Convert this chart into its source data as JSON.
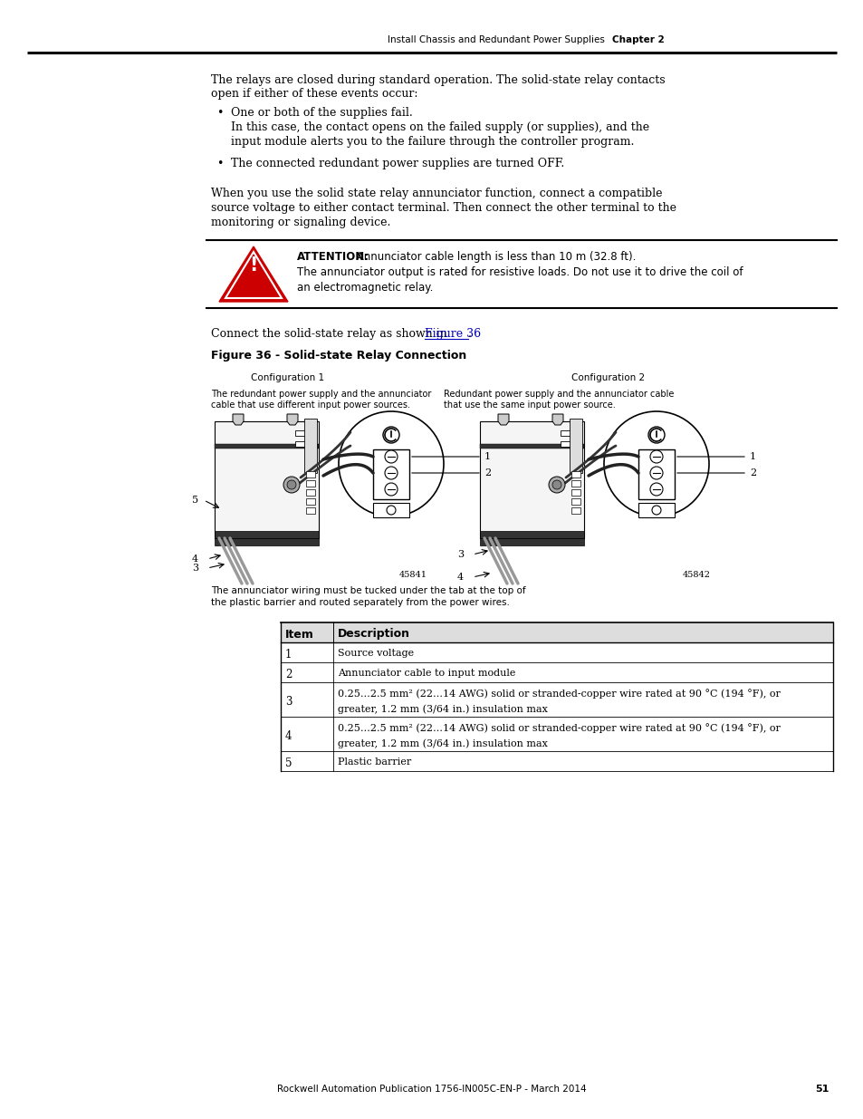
{
  "page_bg": "#ffffff",
  "header_text": "Install Chassis and Redundant Power Supplies",
  "header_chapter": "Chapter 2",
  "footer_text": "Rockwell Automation Publication 1756-IN005C-EN-P - March 2014",
  "footer_page": "51",
  "para1_line1": "The relays are closed during standard operation. The solid-state relay contacts",
  "para1_line2": "open if either of these events occur:",
  "bullet1_title": "One or both of the supplies fail.",
  "bullet1_sub1": "In this case, the contact opens on the failed supply (or supplies), and the",
  "bullet1_sub2": "input module alerts you to the failure through the controller program.",
  "bullet2": "The connected redundant power supplies are turned OFF.",
  "para2_line1": "When you use the solid state relay annunciator function, connect a compatible",
  "para2_line2": "source voltage to either contact terminal. Then connect the other terminal to the",
  "para2_line3": "monitoring or signaling device.",
  "attention_bold": "ATTENTION:",
  "attention_rest_line1": " Annunciator cable length is less than 10 m (32.8 ft).",
  "attention_line2a": "The annunciator output is rated for resistive loads. Do not use it to drive the coil of",
  "attention_line2b": "an electromagnetic relay.",
  "connect_pre": "Connect the solid-state relay as shown in ",
  "connect_link": "Figure 36",
  "connect_post": ".",
  "figure_caption": "Figure 36 - Solid-state Relay Connection",
  "config1_label": "Configuration 1",
  "config1_desc1": "The redundant power supply and the annunciator",
  "config1_desc2": "cable that use different input power sources.",
  "config2_label": "Configuration 2",
  "config2_desc1": "Redundant power supply and the annunciator cable",
  "config2_desc2": "that use the same input power source.",
  "ref1": "45841",
  "ref2": "45842",
  "note_line1": "The annunciator wiring must be tucked under the tab at the top of",
  "note_line2": "the plastic barrier and routed separately from the power wires.",
  "tbl_hdr_item": "Item",
  "tbl_hdr_desc": "Description",
  "tbl_rows": [
    [
      "1",
      "Source voltage"
    ],
    [
      "2",
      "Annunciator cable to input module"
    ],
    [
      "3",
      "0.25…2.5 mm² (22…14 AWG) solid or stranded-copper wire rated at 90 °C (194 °F), or",
      "greater, 1.2 mm (3/64 in.) insulation max"
    ],
    [
      "4",
      "0.25…2.5 mm² (22…14 AWG) solid or stranded-copper wire rated at 90 °C (194 °F), or",
      "greater, 1.2 mm (3/64 in.) insulation max"
    ],
    [
      "5",
      "Plastic barrier"
    ]
  ]
}
